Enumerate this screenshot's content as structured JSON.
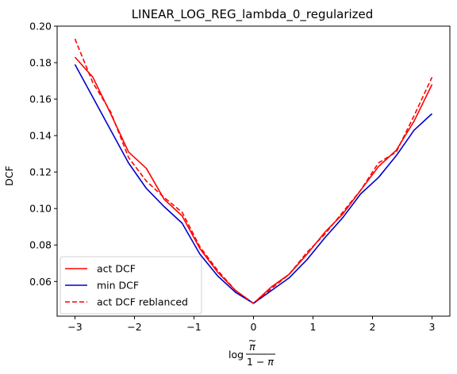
{
  "chart_data": {
    "type": "line",
    "title": "LINEAR_LOG_REG_lambda_0_regularized",
    "xlabel": "",
    "ylabel": "DCF",
    "xlim": [
      -3.3,
      3.3
    ],
    "ylim": [
      0.041,
      0.2
    ],
    "xticks": [
      -3,
      -2,
      -1,
      0,
      1,
      2,
      3
    ],
    "xtick_labels": [
      "−3",
      "−2",
      "−1",
      "0",
      "1",
      "2",
      "3"
    ],
    "yticks": [
      0.06,
      0.08,
      0.1,
      0.12,
      0.14,
      0.16,
      0.18,
      0.2
    ],
    "ytick_labels": [
      "0.06",
      "0.08",
      "0.10",
      "0.12",
      "0.14",
      "0.16",
      "0.18",
      "0.20"
    ],
    "grid": false,
    "legend_position": "lower-left",
    "x": [
      -3.0,
      -2.7,
      -2.4,
      -2.1,
      -1.8,
      -1.5,
      -1.2,
      -0.9,
      -0.6,
      -0.3,
      0.0,
      0.3,
      0.6,
      0.9,
      1.2,
      1.5,
      1.8,
      2.1,
      2.4,
      2.7,
      3.0
    ],
    "series": [
      {
        "name": "act DCF",
        "color": "#ff0000",
        "dash": "solid",
        "values": [
          0.183,
          0.172,
          0.152,
          0.131,
          0.122,
          0.105,
          0.096,
          0.078,
          0.065,
          0.055,
          0.048,
          0.057,
          0.064,
          0.075,
          0.087,
          0.097,
          0.11,
          0.123,
          0.132,
          0.148,
          0.168
        ]
      },
      {
        "name": "min DCF",
        "color": "#0000cc",
        "dash": "solid",
        "values": [
          0.179,
          0.161,
          0.143,
          0.125,
          0.111,
          0.101,
          0.092,
          0.075,
          0.063,
          0.054,
          0.048,
          0.055,
          0.062,
          0.072,
          0.084,
          0.095,
          0.108,
          0.117,
          0.129,
          0.143,
          0.152
        ]
      },
      {
        "name": "act DCF reblanced",
        "color": "#ff0000",
        "dash": "dashed",
        "values": [
          0.193,
          0.169,
          0.153,
          0.128,
          0.115,
          0.106,
          0.098,
          0.079,
          0.066,
          0.055,
          0.048,
          0.056,
          0.064,
          0.076,
          0.086,
          0.098,
          0.11,
          0.125,
          0.131,
          0.151,
          0.172
        ]
      }
    ]
  }
}
